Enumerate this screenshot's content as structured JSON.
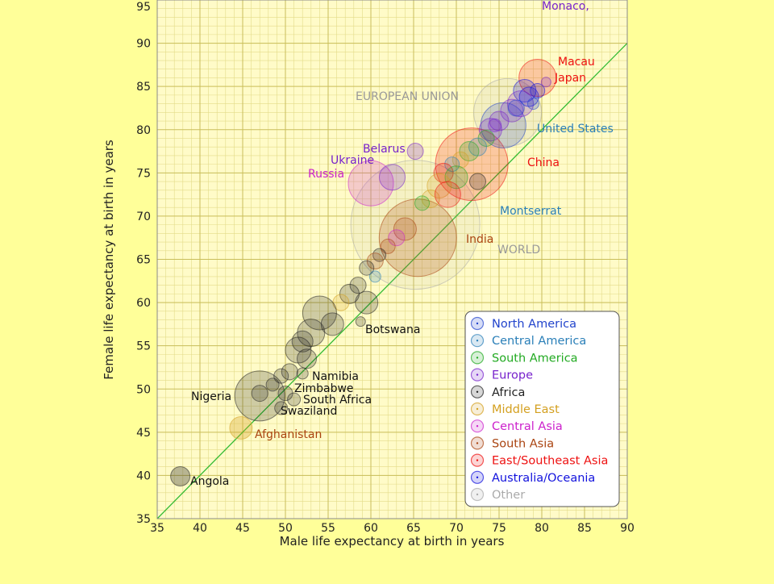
{
  "chart_data": {
    "type": "scatter",
    "xlabel": "Male life expectancy at birth in years",
    "ylabel": "Female life expectancy at birth in years",
    "xlim": [
      35,
      90
    ],
    "ylim": [
      35,
      95
    ],
    "x_ticks": [
      35,
      40,
      45,
      50,
      55,
      60,
      65,
      70,
      75,
      80,
      85,
      90
    ],
    "y_ticks": [
      35,
      40,
      45,
      50,
      55,
      60,
      65,
      70,
      75,
      80,
      85,
      90,
      95
    ],
    "grid": true,
    "reference_line": "y = x",
    "legend_position": "bottom-right",
    "legend": [
      {
        "name": "North America",
        "color": "#2244cc"
      },
      {
        "name": "Central America",
        "color": "#2a7fb8"
      },
      {
        "name": "South America",
        "color": "#22aa22"
      },
      {
        "name": "Europe",
        "color": "#7722cc"
      },
      {
        "name": "Africa",
        "color": "#222222"
      },
      {
        "name": "Middle East",
        "color": "#d4a020"
      },
      {
        "name": "Central Asia",
        "color": "#cc22cc"
      },
      {
        "name": "South Asia",
        "color": "#aa4411"
      },
      {
        "name": "East/Southeast Asia",
        "color": "#ee1111"
      },
      {
        "name": "Australia/Oceania",
        "color": "#1111dd"
      },
      {
        "name": "Other",
        "color": "#aaaaaa"
      }
    ],
    "labeled_points": [
      {
        "label": "Monaco",
        "x": 85.5,
        "y": 93.8,
        "region": "Europe"
      },
      {
        "label": "Macau",
        "x": 81.5,
        "y": 87.3,
        "region": "East/Southeast Asia"
      },
      {
        "label": "Japan",
        "x": 79.0,
        "y": 86.0,
        "region": "East/Southeast Asia"
      },
      {
        "label": "EUROPEAN UNION",
        "x": 76.0,
        "y": 82.0,
        "region": "Other"
      },
      {
        "label": "United States",
        "x": 75.5,
        "y": 80.7,
        "region": "North America"
      },
      {
        "label": "China",
        "x": 72.0,
        "y": 75.5,
        "region": "East/Southeast Asia"
      },
      {
        "label": "Belarus",
        "x": 64.8,
        "y": 76.8,
        "region": "Europe"
      },
      {
        "label": "Ukraine",
        "x": 62.5,
        "y": 74.5,
        "region": "Europe"
      },
      {
        "label": "Russia",
        "x": 60.0,
        "y": 73.0,
        "region": "Central Asia"
      },
      {
        "label": "Montserrat",
        "x": 74.5,
        "y": 71.0,
        "region": "Central America"
      },
      {
        "label": "India",
        "x": 65.5,
        "y": 67.5,
        "region": "South Asia"
      },
      {
        "label": "WORLD",
        "x": 64.5,
        "y": 69.0,
        "region": "Other"
      },
      {
        "label": "Botswana",
        "x": 58.5,
        "y": 57.5,
        "region": "Africa"
      },
      {
        "label": "Namibia",
        "x": 51.8,
        "y": 52.0,
        "region": "Africa"
      },
      {
        "label": "Zimbabwe",
        "x": 50.5,
        "y": 49.5,
        "region": "Africa"
      },
      {
        "label": "South Africa",
        "x": 51.0,
        "y": 48.5,
        "region": "Africa"
      },
      {
        "label": "Swaziland",
        "x": 49.5,
        "y": 48.0,
        "region": "Africa"
      },
      {
        "label": "Nigeria",
        "x": 46.5,
        "y": 49.0,
        "region": "Africa"
      },
      {
        "label": "Afghanistan",
        "x": 44.8,
        "y": 45.2,
        "region": "South Asia"
      },
      {
        "label": "Angola",
        "x": 37.7,
        "y": 39.8,
        "region": "Africa"
      }
    ]
  }
}
